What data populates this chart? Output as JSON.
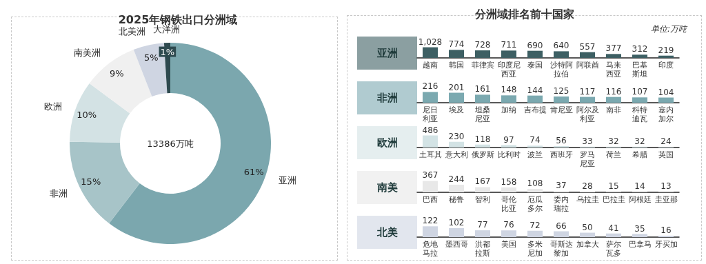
{
  "chart_data": [
    {
      "type": "donut",
      "title": "2025年钢铁出口分洲域",
      "categories": [
        "亚洲",
        "非洲",
        "欧洲",
        "南美洲",
        "北美洲",
        "大洋洲"
      ],
      "values": [
        61,
        15,
        10,
        9,
        5,
        1
      ],
      "colors": [
        "#7ba7ae",
        "#a7c4c8",
        "#d3e2e4",
        "#f0f0f0",
        "#cfd5e2",
        "#2e4a4f"
      ],
      "value_labels": [
        "61%",
        "15%",
        "10%",
        "9%",
        "5%",
        "1%"
      ],
      "annotations": [
        "13386万吨"
      ]
    },
    {
      "type": "bar",
      "title": "分洲域排名前十国家",
      "annotations": [
        "单位:万吨"
      ],
      "ylabel": "亚洲",
      "categories": [
        "越南",
        "韩国",
        "菲律宾",
        "印度尼西亚",
        "泰国",
        "沙特阿拉伯",
        "阿联酋",
        "马来西亚",
        "巴基斯坦",
        "印度"
      ],
      "values": [
        1028,
        774,
        728,
        711,
        690,
        640,
        557,
        377,
        312,
        219
      ],
      "value_labels": [
        "1,028",
        "774",
        "728",
        "711",
        "690",
        "640",
        "557",
        "377",
        "312",
        "219"
      ],
      "color": "#3d5f63"
    },
    {
      "type": "bar",
      "ylabel": "非洲",
      "categories": [
        "尼日利亚",
        "埃及",
        "坦桑尼亚",
        "加纳",
        "吉布提",
        "肯尼亚",
        "阿尔及利亚",
        "南非",
        "科特迪瓦",
        "塞内加尔"
      ],
      "values": [
        216,
        201,
        161,
        148,
        144,
        125,
        117,
        116,
        107,
        104
      ],
      "color": "#7ba9b0",
      "data_labels": true
    },
    {
      "type": "bar",
      "ylabel": "欧洲",
      "categories": [
        "土耳其",
        "意大利",
        "俄罗斯",
        "比利时",
        "波兰",
        "西班牙",
        "罗马尼亚",
        "荷兰",
        "希腊",
        "英国"
      ],
      "values": [
        486,
        230,
        118,
        97,
        74,
        56,
        33,
        32,
        32,
        24
      ],
      "color": "#d3e3e5",
      "data_labels": true
    },
    {
      "type": "bar",
      "ylabel": "南美",
      "categories": [
        "巴西",
        "秘鲁",
        "智利",
        "哥伦比亚",
        "厄瓜多尔",
        "委内瑞拉",
        "乌拉圭",
        "巴拉圭",
        "阿根廷",
        "圭亚那"
      ],
      "values": [
        367,
        244,
        167,
        158,
        108,
        37,
        28,
        15,
        14,
        13
      ],
      "color": "#e8e8e8",
      "data_labels": true
    },
    {
      "type": "bar",
      "ylabel": "北美",
      "categories": [
        "危地马拉",
        "墨西哥",
        "洪都拉斯",
        "美国",
        "多米尼加",
        "哥斯达黎加",
        "加拿大",
        "萨尔瓦多",
        "巴拿马",
        "牙买加"
      ],
      "values": [
        122,
        102,
        77,
        76,
        72,
        66,
        50,
        41,
        35,
        16
      ],
      "color": "#cfd5e2",
      "data_labels": true
    }
  ]
}
